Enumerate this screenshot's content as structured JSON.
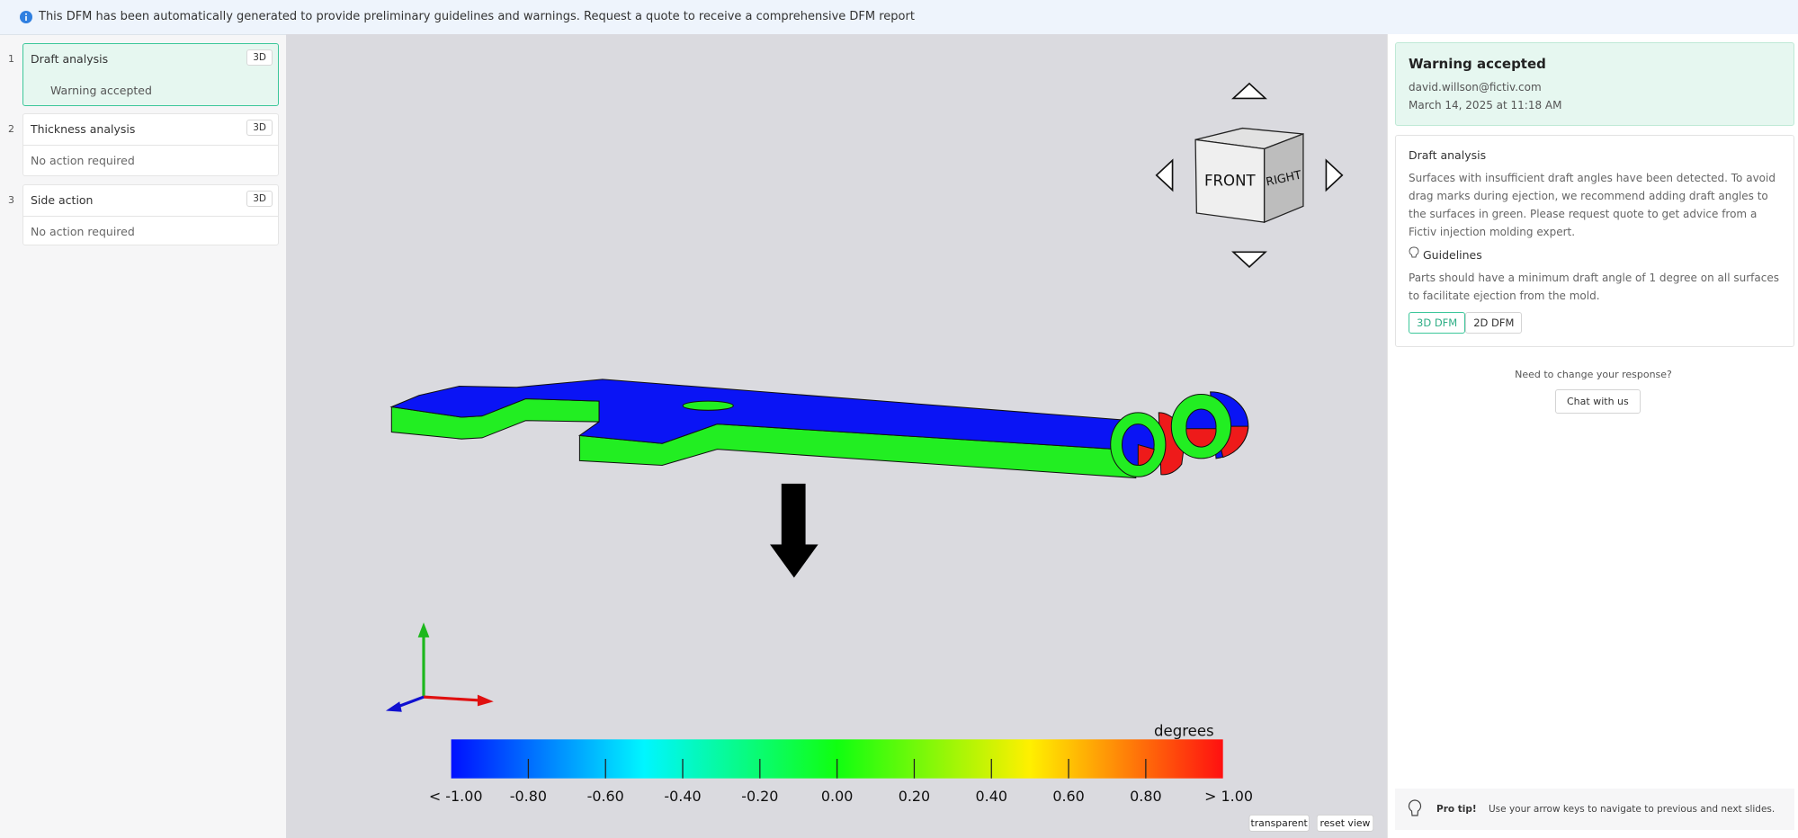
{
  "banner": {
    "text": "This DFM has been automatically generated to provide preliminary guidelines and warnings. Request a quote to receive a comprehensive DFM report"
  },
  "steps": [
    {
      "number": 1,
      "title": "Draft analysis",
      "badge": "3D",
      "status": "Warning accepted"
    },
    {
      "number": 2,
      "title": "Thickness analysis",
      "badge": "3D",
      "status": "No action required"
    },
    {
      "number": 3,
      "title": "Side action",
      "badge": "3D",
      "status": "No action required"
    }
  ],
  "viewer": {
    "cube": {
      "front": "FRONT",
      "right": "RIGHT"
    },
    "scale": {
      "unit": "degrees",
      "labels": [
        "< -1.00",
        "-0.80",
        "-0.60",
        "-0.40",
        "-0.20",
        "0.00",
        "0.20",
        "0.40",
        "0.60",
        "0.80",
        "> 1.00"
      ]
    },
    "buttons": [
      "transparent",
      "reset view"
    ]
  },
  "panel": {
    "status": {
      "title": "Warning accepted",
      "user": "david.willson@fictiv.com",
      "date": "March 14, 2025 at 11:18 AM"
    },
    "detail": {
      "title": "Draft analysis",
      "description": "Surfaces with insufficient draft angles have been detected. To avoid drag marks during ejection, we recommend adding draft angles to the surfaces in green. Please request quote to get advice from a Fictiv injection molding expert.",
      "guidelines_title": "Guidelines",
      "guidelines": "Parts should have a minimum draft angle of 1 degree on all surfaces to facilitate ejection from the mold.",
      "tabs": [
        "3D DFM",
        "2D DFM"
      ]
    },
    "prompt": "Need to change your response?",
    "chat_button": "Chat with us",
    "tip": {
      "label": "Pro tip!",
      "text": "Use your arrow keys to navigate to previous and next slides."
    }
  }
}
